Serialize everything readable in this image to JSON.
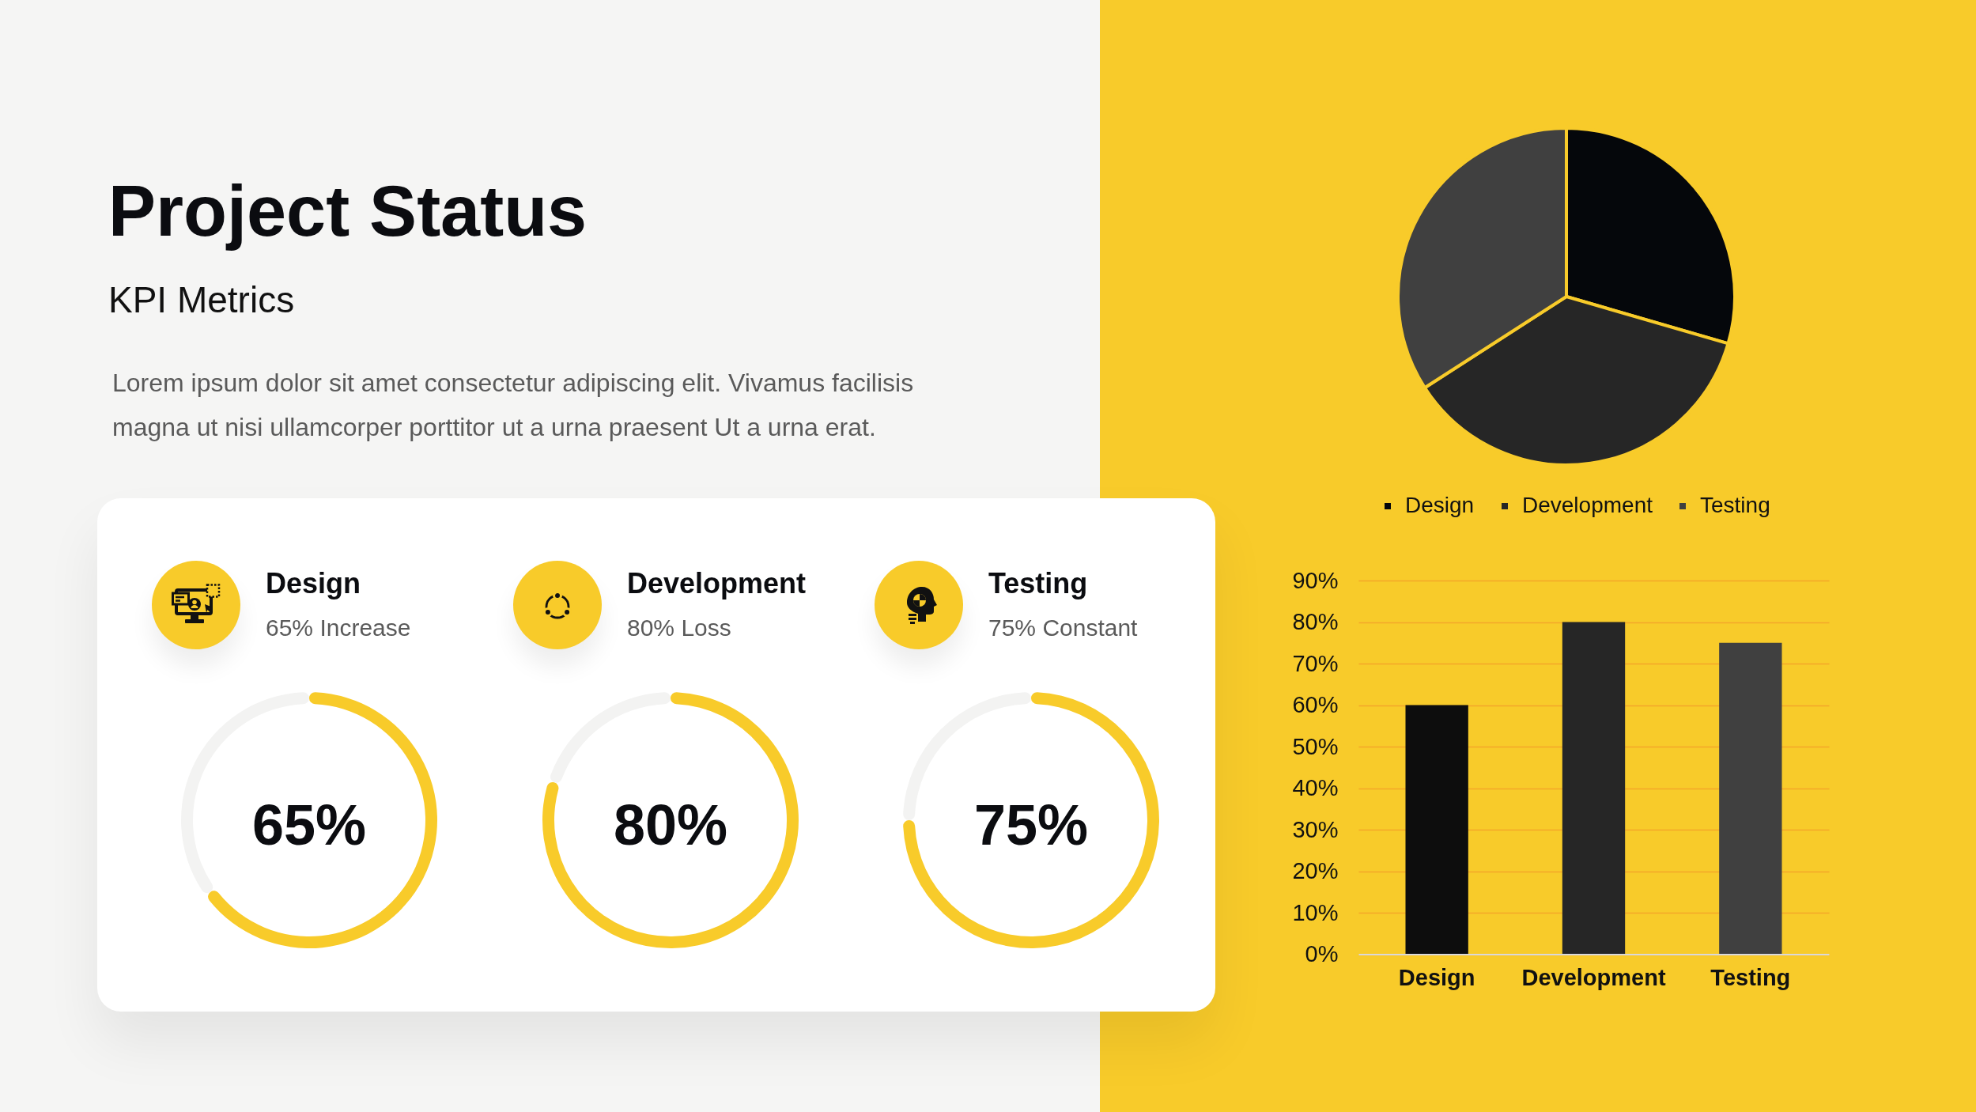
{
  "chart_data": [
    {
      "type": "other",
      "title": "Project Status",
      "subtitle": "KPI Metrics",
      "annotations": [
        "Lorem ipsum dolor sit amet consectetur adipiscing elit. Vivamus facilisis magna ut nisi ullamcorper porttitor ut a urna praesent Ut a urna erat."
      ]
    },
    {
      "type": "donut",
      "title": "Design",
      "subtitle": "65% Increase",
      "categories": [
        null,
        null
      ],
      "values": [
        65,
        35
      ],
      "colors": [
        "#f8cb2a",
        "#f3f3f2"
      ],
      "value_labels": [
        "65%",
        null
      ]
    },
    {
      "type": "donut",
      "title": "Development",
      "subtitle": "80% Loss",
      "categories": [
        null,
        null
      ],
      "values": [
        80,
        20
      ],
      "colors": [
        "#f8cb2a",
        "#f3f3f2"
      ],
      "value_labels": [
        "80%",
        null
      ]
    },
    {
      "type": "donut",
      "title": "Testing",
      "subtitle": "75% Constant",
      "categories": [
        null,
        null
      ],
      "values": [
        75,
        25
      ],
      "colors": [
        "#f8cb2a",
        "#f3f3f2"
      ],
      "value_labels": [
        "75%",
        null
      ]
    },
    {
      "type": "pie",
      "categories": [
        "Design",
        "Development",
        "Testing"
      ],
      "values": [
        29.5,
        36.4,
        34.1
      ],
      "colors": [
        "#05070b",
        "#262626",
        "#404040"
      ],
      "legend": "bottom"
    },
    {
      "type": "bar",
      "categories": [
        "Design",
        "Development",
        "Testing"
      ],
      "values": [
        60,
        80,
        75
      ],
      "colors": [
        "#0d0d0d",
        "#262626",
        "#404040"
      ],
      "ylim": [
        0,
        90
      ],
      "yticks": [
        {
          "value": 0,
          "label": "0%"
        },
        {
          "value": 10,
          "label": "10%"
        },
        {
          "value": 20,
          "label": "20%"
        },
        {
          "value": 30,
          "label": "30%"
        },
        {
          "value": 40,
          "label": "40%"
        },
        {
          "value": 50,
          "label": "50%"
        },
        {
          "value": 60,
          "label": "60%"
        },
        {
          "value": 70,
          "label": "70%"
        },
        {
          "value": 80,
          "label": "80%"
        },
        {
          "value": 90,
          "label": "90%"
        }
      ],
      "grid": "y"
    }
  ]
}
